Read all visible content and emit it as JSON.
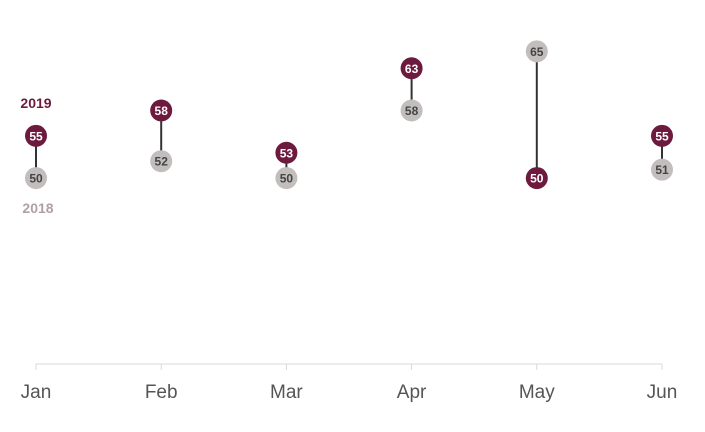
{
  "chart_data": {
    "type": "dumbbell",
    "categories": [
      "Jan",
      "Feb",
      "Mar",
      "Apr",
      "May",
      "Jun"
    ],
    "series": [
      {
        "name": "2019",
        "values": [
          55,
          58,
          53,
          63,
          50,
          55
        ],
        "color": "#6d1a3f",
        "text_color": "#ffffff"
      },
      {
        "name": "2018",
        "values": [
          50,
          52,
          50,
          58,
          65,
          51
        ],
        "color": "#c2bebd",
        "text_color": "#444444"
      }
    ],
    "label_colors": {
      "2019": "#6d1a3f",
      "2018": "#b09fa6"
    },
    "ylim": [
      28,
      68
    ],
    "grid": false
  }
}
